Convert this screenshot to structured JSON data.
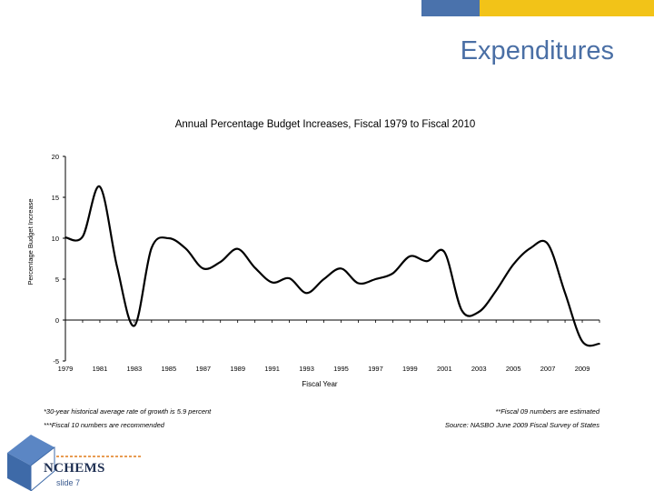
{
  "slide": {
    "title": "Expenditures",
    "slide_number": "slide 7",
    "logo_text": "NCHEMS",
    "colors": {
      "accent_blue": "#4a72ac",
      "accent_yellow": "#f2c318",
      "title_color": "#4a6fa5"
    }
  },
  "notes": {
    "left1": "*30-year historical average rate of growth is 5.9 percent",
    "left2": "***Fiscal 10 numbers are recommended",
    "right1": "**Fiscal 09 numbers are estimated",
    "right2": "Source: NASBO June 2009 Fiscal Survey of States"
  },
  "chart_data": {
    "type": "line",
    "title": "Annual Percentage Budget Increases, Fiscal 1979 to Fiscal 2010",
    "xlabel": "Fiscal Year",
    "ylabel": "Percentage Budget Increase",
    "ylim": [
      -5,
      20
    ],
    "yticks": [
      "-5",
      "0",
      "5",
      "10",
      "15",
      "20"
    ],
    "xticks": [
      "1979",
      "1981",
      "1983",
      "1985",
      "1987",
      "1989",
      "1991",
      "1993",
      "1995",
      "1997",
      "1999",
      "2001",
      "2003",
      "2005",
      "2007",
      "2009"
    ],
    "xlim": [
      1979,
      2010
    ],
    "grid": false,
    "legend": "none",
    "x": [
      1979,
      1980,
      1981,
      1982,
      1983,
      1984,
      1985,
      1986,
      1987,
      1988,
      1989,
      1990,
      1991,
      1992,
      1993,
      1994,
      1995,
      1996,
      1997,
      1998,
      1999,
      2000,
      2001,
      2002,
      2003,
      2004,
      2005,
      2006,
      2007,
      2008,
      2009,
      2010
    ],
    "values": [
      10.1,
      10.2,
      16.3,
      6.5,
      -0.7,
      8.8,
      10.0,
      8.7,
      6.3,
      7.1,
      8.7,
      6.4,
      4.6,
      5.1,
      3.3,
      5.0,
      6.3,
      4.5,
      5.0,
      5.7,
      7.8,
      7.2,
      8.3,
      1.2,
      1.0,
      3.6,
      6.8,
      8.8,
      9.3,
      3.3,
      -2.6,
      -2.9
    ]
  }
}
